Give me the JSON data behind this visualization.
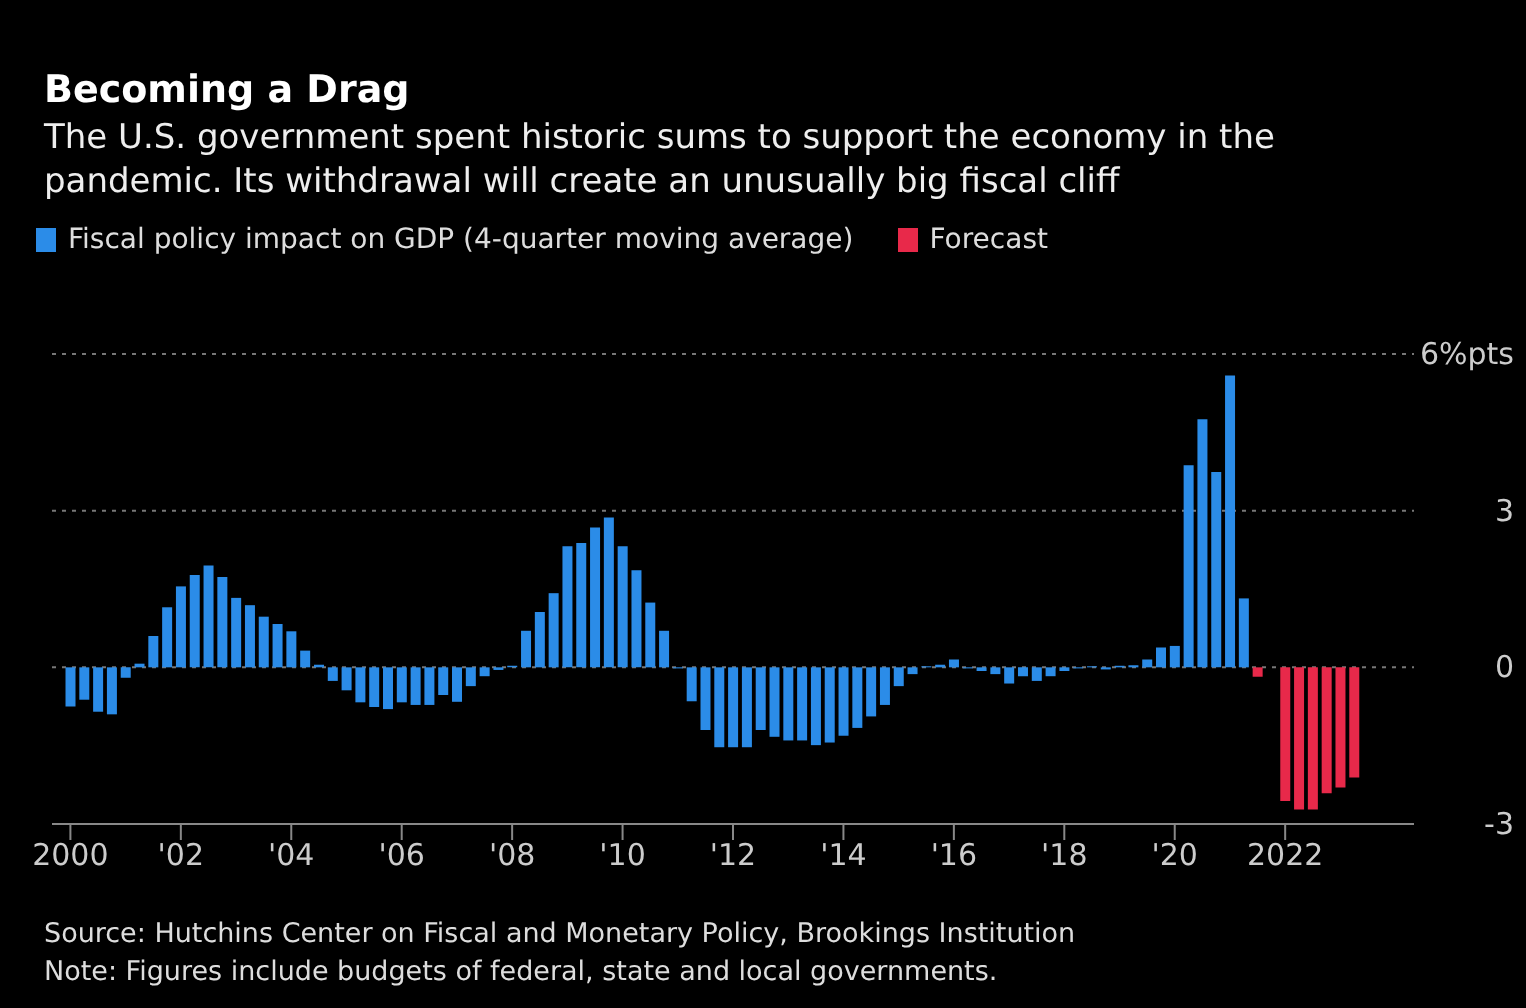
{
  "chart_data": {
    "type": "bar",
    "title": "Becoming a Drag",
    "subtitle": "The U.S. government spent historic sums to support the economy in the pandemic. Its withdrawal will create an unusually big fiscal cliff",
    "x": [
      "2000-01",
      "2000-04",
      "2000-07",
      "2000-10",
      "2001-01",
      "2001-04",
      "2001-07",
      "2001-10",
      "2002-01",
      "2002-04",
      "2002-07",
      "2002-10",
      "2003-01",
      "2003-04",
      "2003-07",
      "2003-10",
      "2004-01",
      "2004-04",
      "2004-07",
      "2004-10",
      "2005-01",
      "2005-04",
      "2005-07",
      "2005-10",
      "2006-01",
      "2006-04",
      "2006-07",
      "2006-10",
      "2007-01",
      "2007-04",
      "2007-07",
      "2007-10",
      "2008-01",
      "2008-04",
      "2008-07",
      "2008-10",
      "2009-01",
      "2009-04",
      "2009-07",
      "2009-10",
      "2010-01",
      "2010-04",
      "2010-07",
      "2010-10",
      "2011-01",
      "2011-04",
      "2011-07",
      "2011-10",
      "2012-01",
      "2012-04",
      "2012-07",
      "2012-10",
      "2013-01",
      "2013-04",
      "2013-07",
      "2013-10",
      "2014-01",
      "2014-04",
      "2014-07",
      "2014-10",
      "2015-01",
      "2015-04",
      "2015-07",
      "2015-10",
      "2016-01",
      "2016-04",
      "2016-07",
      "2016-10",
      "2017-01",
      "2017-04",
      "2017-07",
      "2017-10",
      "2018-01",
      "2018-04",
      "2018-07",
      "2018-10",
      "2019-01",
      "2019-04",
      "2019-07",
      "2019-10",
      "2020-01",
      "2020-04",
      "2020-07",
      "2020-10",
      "2021-01",
      "2021-04",
      "2021-07",
      "2021-10",
      "2022-01",
      "2022-04",
      "2022-07",
      "2022-10",
      "2023-01",
      "2023-04"
    ],
    "series": [
      {
        "name": "Fiscal policy impact on GDP (4-quarter moving average)",
        "color": "#2b8ce8",
        "values": [
          -0.75,
          -0.62,
          -0.85,
          -0.9,
          -0.2,
          0.07,
          0.6,
          1.15,
          1.55,
          1.77,
          1.95,
          1.73,
          1.33,
          1.19,
          0.97,
          0.83,
          0.69,
          0.32,
          0.05,
          -0.26,
          -0.44,
          -0.67,
          -0.76,
          -0.8,
          -0.67,
          -0.72,
          -0.72,
          -0.53,
          -0.66,
          -0.36,
          -0.17,
          -0.05,
          0.03,
          0.7,
          1.06,
          1.42,
          2.32,
          2.38,
          2.68,
          2.87,
          2.32,
          1.86,
          1.24,
          0.7,
          -0.02,
          -0.65,
          -1.2,
          -1.53,
          -1.53,
          -1.53,
          -1.2,
          -1.33,
          -1.4,
          -1.4,
          -1.49,
          -1.44,
          -1.31,
          -1.16,
          -0.94,
          -0.72,
          -0.36,
          -0.13,
          0.02,
          0.05,
          0.15,
          -0.02,
          -0.07,
          -0.13,
          -0.31,
          -0.17,
          -0.26,
          -0.17,
          -0.07,
          -0.02,
          0.02,
          -0.04,
          0.03,
          0.04,
          0.15,
          0.38,
          0.41,
          3.87,
          4.75,
          3.74,
          5.59,
          1.32,
          null,
          null,
          null,
          null,
          null,
          null,
          null,
          null
        ]
      },
      {
        "name": "Forecast",
        "color": "#e8294a",
        "values": [
          null,
          null,
          null,
          null,
          null,
          null,
          null,
          null,
          null,
          null,
          null,
          null,
          null,
          null,
          null,
          null,
          null,
          null,
          null,
          null,
          null,
          null,
          null,
          null,
          null,
          null,
          null,
          null,
          null,
          null,
          null,
          null,
          null,
          null,
          null,
          null,
          null,
          null,
          null,
          null,
          null,
          null,
          null,
          null,
          null,
          null,
          null,
          null,
          null,
          null,
          null,
          null,
          null,
          null,
          null,
          null,
          null,
          null,
          null,
          null,
          null,
          null,
          null,
          null,
          null,
          null,
          null,
          null,
          null,
          null,
          null,
          null,
          null,
          null,
          null,
          null,
          null,
          null,
          null,
          null,
          null,
          null,
          null,
          null,
          null,
          null,
          -0.18,
          null,
          -2.56,
          -2.72,
          -2.72,
          -2.41,
          -2.3,
          -2.11
        ]
      }
    ],
    "xlim": [
      "1999-09",
      "2024-05"
    ],
    "xticks": [
      {
        "value": "2000",
        "label": "2000"
      },
      {
        "value": "2002",
        "label": "'02"
      },
      {
        "value": "2004",
        "label": "'04"
      },
      {
        "value": "2006",
        "label": "'06"
      },
      {
        "value": "2008",
        "label": "'08"
      },
      {
        "value": "2010",
        "label": "'10"
      },
      {
        "value": "2012",
        "label": "'12"
      },
      {
        "value": "2014",
        "label": "'14"
      },
      {
        "value": "2016",
        "label": "'16"
      },
      {
        "value": "2018",
        "label": "'18"
      },
      {
        "value": "2020",
        "label": "'20"
      },
      {
        "value": "2022",
        "label": "2022"
      }
    ],
    "ylim": [
      -3,
      6
    ],
    "yticks": [
      -3,
      0,
      3,
      {
        "value": 6,
        "label": "6%pts"
      }
    ],
    "grid": "y",
    "legend": "top left",
    "annotations": [
      "Source: Hutchins Center on Fiscal and Monetary Policy, Brookings Institution",
      "Note: Figures include budgets of federal, state and local governments."
    ]
  }
}
